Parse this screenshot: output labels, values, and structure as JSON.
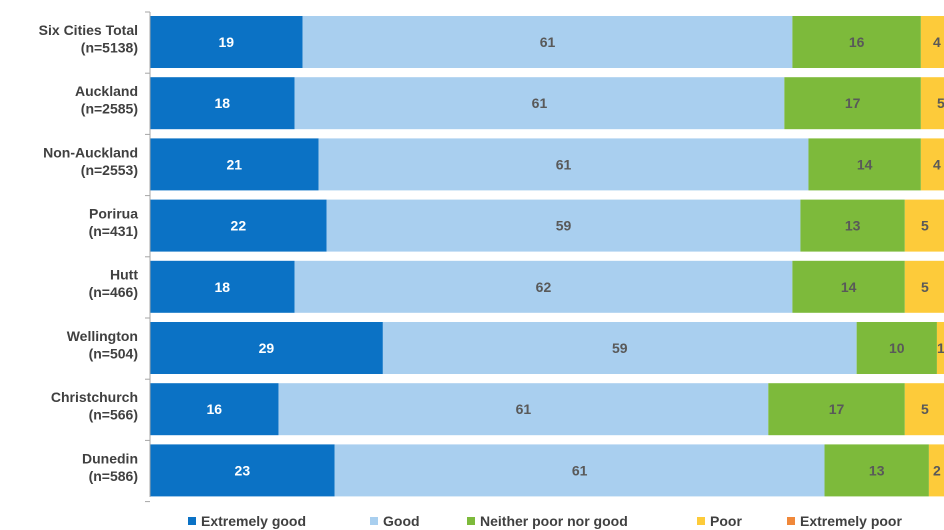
{
  "chart_data": {
    "type": "bar",
    "orientation": "horizontal",
    "stacked": true,
    "categories": [
      [
        "Six Cities Total",
        "(n=5138)"
      ],
      [
        "Auckland",
        "(n=2585)"
      ],
      [
        "Non-Auckland",
        "(n=2553)"
      ],
      [
        "Porirua",
        "(n=431)"
      ],
      [
        "Hutt",
        "(n=466)"
      ],
      [
        "Wellington",
        "(n=504)"
      ],
      [
        "Christchurch",
        "(n=566)"
      ],
      [
        "Dunedin",
        "(n=586)"
      ]
    ],
    "series": [
      {
        "name": "Extremely good",
        "color": "#0B72C5",
        "label_color": "#ffffff",
        "values": [
          19,
          18,
          21,
          22,
          18,
          29,
          16,
          23
        ],
        "labels": [
          "19",
          "18",
          "21",
          "22",
          "18",
          "29",
          "16",
          "23"
        ]
      },
      {
        "name": "Good",
        "color": "#A9CFEF",
        "label_color": "#595959",
        "values": [
          61,
          61,
          61,
          59,
          62,
          59,
          61,
          61
        ],
        "labels": [
          "61",
          "61",
          "61",
          "59",
          "62",
          "59",
          "61",
          "61"
        ]
      },
      {
        "name": "Neither poor nor good",
        "color": "#7DBA3B",
        "label_color": "#595959",
        "values": [
          16,
          17,
          14,
          13,
          14,
          10,
          17,
          13
        ],
        "labels": [
          "16",
          "17",
          "14",
          "13",
          "14",
          "10",
          "17",
          "13"
        ]
      },
      {
        "name": "Poor",
        "color": "#FDCB3A",
        "label_color": "#595959",
        "values": [
          4,
          5,
          4,
          5,
          5,
          1,
          5,
          2
        ],
        "labels": [
          "4",
          "5",
          "4",
          "5",
          "5",
          "1",
          "5",
          "2"
        ]
      },
      {
        "name": "Extremely poor",
        "color": "#F0883A",
        "label_color": "#595959",
        "values": [
          1,
          1,
          0,
          1,
          1,
          1,
          0,
          0
        ],
        "labels": [
          "",
          "",
          "",
          "",
          "",
          "",
          "",
          ""
        ]
      }
    ],
    "xlim": [
      0,
      100
    ],
    "grid": false,
    "legend_position": "bottom"
  }
}
